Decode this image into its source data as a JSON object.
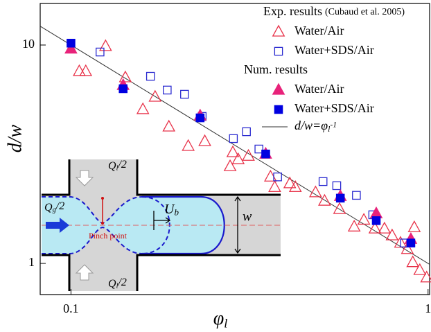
{
  "chart_data": {
    "type": "scatter",
    "x_label": {
      "base": "φ",
      "sub": "l"
    },
    "y_label": "d/w",
    "xscale": "log",
    "yscale": "log",
    "xlim": [
      0.082,
      1.01
    ],
    "ylim": [
      0.72,
      15.5
    ],
    "xticks": [
      0.1,
      1
    ],
    "yticks": [
      1,
      10
    ],
    "legend_groups": [
      {
        "title": "Exp. results",
        "note": "(Cubaud et al. 2005)"
      },
      {
        "title": "Num. results"
      }
    ],
    "fit_label": {
      "base": "d/w=φ",
      "sub": "l",
      "sup": "-1"
    },
    "series": [
      {
        "name": "Water/Air",
        "group": 0,
        "marker": "triangle",
        "filled": false,
        "color": "#e8334a",
        "x": [
          0.1055,
          0.11,
          0.125,
          0.142,
          0.159,
          0.172,
          0.188,
          0.213,
          0.237,
          0.279,
          0.284,
          0.294,
          0.314,
          0.362,
          0.372,
          0.41,
          0.425,
          0.484,
          0.513,
          0.565,
          0.621,
          0.661,
          0.71,
          0.755,
          0.793,
          0.837,
          0.875,
          0.906,
          0.915,
          0.948,
          0.991
        ],
        "values": [
          7.57,
          7.57,
          9.86,
          7.09,
          5.07,
          5.78,
          4.22,
          3.44,
          3.62,
          2.78,
          3.22,
          2.99,
          3.1,
          2.49,
          2.23,
          2.32,
          2.23,
          2.11,
          1.93,
          1.77,
          1.47,
          1.58,
          1.44,
          1.44,
          1.34,
          1.24,
          1.16,
          1.01,
          1.46,
          0.93,
          0.86
        ]
      },
      {
        "name": "Water+SDS/Air",
        "group": 0,
        "marker": "square",
        "filled": false,
        "color": "#2a2ad0",
        "x": [
          0.1206,
          0.167,
          0.186,
          0.208,
          0.233,
          0.285,
          0.31,
          0.336,
          0.379,
          0.508,
          0.555,
          0.63,
          0.7,
          0.859
        ],
        "values": [
          9.29,
          7.19,
          6.22,
          5.95,
          4.71,
          3.73,
          4.01,
          3.34,
          2.49,
          2.37,
          2.27,
          2.05,
          1.67,
          1.24
        ]
      },
      {
        "name": "Water/Air",
        "group": 1,
        "marker": "triangle",
        "filled": true,
        "color": "#e8227a",
        "x": [
          0.1,
          0.14,
          0.23,
          0.351,
          0.568,
          0.716,
          0.895
        ],
        "values": [
          9.6,
          6.54,
          4.74,
          3.17,
          2.03,
          1.69,
          1.29
        ]
      },
      {
        "name": "Water+SDS/Air",
        "group": 1,
        "marker": "square",
        "filled": true,
        "color": "#0000e0",
        "x": [
          0.1,
          0.14,
          0.23,
          0.351,
          0.568,
          0.716,
          0.895
        ],
        "values": [
          10.2,
          6.31,
          4.64,
          3.17,
          1.99,
          1.57,
          1.24
        ]
      }
    ]
  },
  "inset": {
    "q_top": {
      "base": "Q",
      "sub": "l",
      "tail": "/2"
    },
    "q_bottom": {
      "base": "Q",
      "sub": "l",
      "tail": "/2"
    },
    "q_gas": {
      "base": "Q",
      "sub": "g",
      "tail": "/2"
    },
    "velocity": {
      "base": "U",
      "sub": "b"
    },
    "width": "w",
    "pinch": "Pinch point"
  }
}
